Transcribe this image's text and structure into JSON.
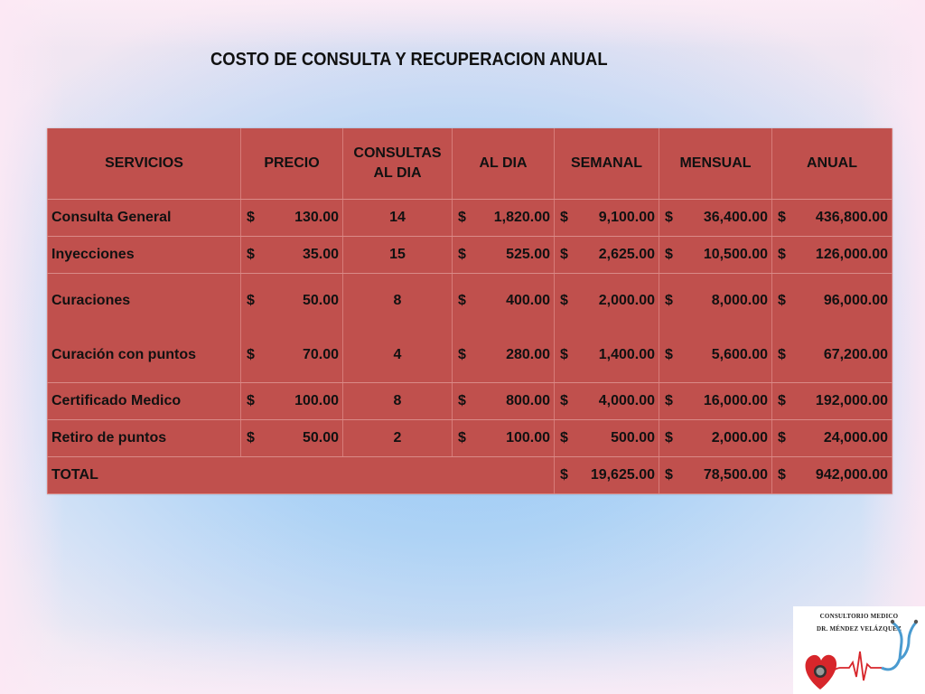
{
  "title": "COSTO DE CONSULTA Y RECUPERACION ANUAL",
  "table": {
    "headers": {
      "servicios": "SERVICIOS",
      "precio": "PRECIO",
      "consultas_line1": "CONSULTAS",
      "consultas_line2": "AL DIA",
      "al_dia": "AL DIA",
      "semanal": "SEMANAL",
      "mensual": "MENSUAL",
      "anual": "ANUAL"
    },
    "currency": "$",
    "rows": [
      {
        "servicio": "Consulta General",
        "precio": "130.00",
        "consultas": "14",
        "al_dia": "1,820.00",
        "semanal": "9,100.00",
        "mensual": "36,400.00",
        "anual": "436,800.00"
      },
      {
        "servicio": "Inyecciones",
        "precio": "35.00",
        "consultas": "15",
        "al_dia": "525.00",
        "semanal": "2,625.00",
        "mensual": "10,500.00",
        "anual": "126,000.00"
      },
      {
        "servicio": "Curaciones",
        "precio": "50.00",
        "consultas": "8",
        "al_dia": "400.00",
        "semanal": "2,000.00",
        "mensual": "8,000.00",
        "anual": "96,000.00"
      },
      {
        "servicio": "Curación con puntos",
        "precio": "70.00",
        "consultas": "4",
        "al_dia": "280.00",
        "semanal": "1,400.00",
        "mensual": "5,600.00",
        "anual": "67,200.00"
      },
      {
        "servicio": "Certificado Medico",
        "precio": "100.00",
        "consultas": "8",
        "al_dia": "800.00",
        "semanal": "4,000.00",
        "mensual": "16,000.00",
        "anual": "192,000.00"
      },
      {
        "servicio": "Retiro de puntos",
        "precio": "50.00",
        "consultas": "2",
        "al_dia": "100.00",
        "semanal": "500.00",
        "mensual": "2,000.00",
        "anual": "24,000.00"
      }
    ],
    "total": {
      "label": "TOTAL",
      "semanal": "19,625.00",
      "mensual": "78,500.00",
      "anual": "942,000.00"
    }
  },
  "logo": {
    "line1": "CONSULTORIO MEDICO",
    "line2": "DR. MÉNDEZ VELÁZQUEZ",
    "icon": "heart-stethoscope-logo"
  },
  "colors": {
    "table_fill": "#c0504d",
    "heart": "#d7262b",
    "stethoscope": "#4a9bd0"
  }
}
